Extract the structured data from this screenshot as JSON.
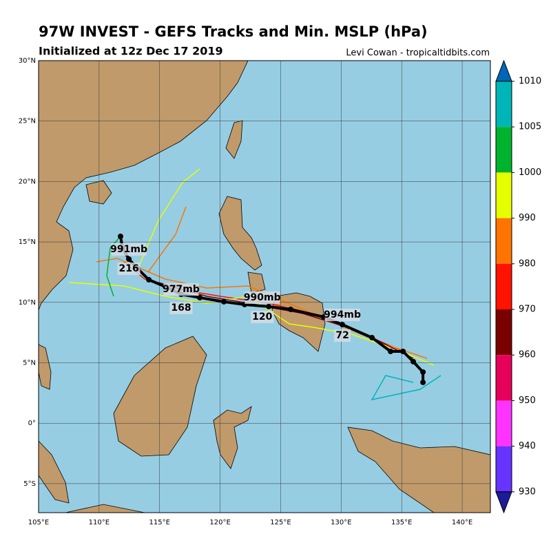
{
  "header": {
    "title": "97W INVEST - GEFS Tracks and Min. MSLP (hPa)",
    "subtitle": "Initialized at 12z Dec 17 2019",
    "credit": "Levi Cowan - tropicaltidbits.com"
  },
  "map": {
    "lonlim": [
      105,
      142.33
    ],
    "latlim": [
      -7.4,
      30
    ],
    "lon_ticks": [
      {
        "value": 105,
        "label": "105°E"
      },
      {
        "value": 110,
        "label": "110°E"
      },
      {
        "value": 115,
        "label": "115°E"
      },
      {
        "value": 120,
        "label": "120°E"
      },
      {
        "value": 125,
        "label": "125°E"
      },
      {
        "value": 130,
        "label": "130°E"
      },
      {
        "value": 135,
        "label": "135°E"
      },
      {
        "value": 140,
        "label": "140°E"
      }
    ],
    "lat_ticks": [
      {
        "value": 30,
        "label": "30°N"
      },
      {
        "value": 25,
        "label": "25°N"
      },
      {
        "value": 20,
        "label": "20°N"
      },
      {
        "value": 15,
        "label": "15°N"
      },
      {
        "value": 10,
        "label": "10°N"
      },
      {
        "value": 5,
        "label": "5°N"
      },
      {
        "value": 0,
        "label": "0°"
      },
      {
        "value": -5,
        "label": "5°S"
      }
    ]
  },
  "mean_track": {
    "lon": [
      136.76,
      136.76,
      135.96,
      135.11,
      134.08,
      132.55,
      130.1,
      128.56,
      125.83,
      124.01,
      122.02,
      120.31,
      118.32,
      116.78,
      115.47,
      114.11,
      113.2,
      112.46,
      111.94,
      111.77
    ],
    "lat": [
      3.38,
      4.23,
      5.09,
      5.94,
      5.94,
      7.08,
      8.16,
      8.79,
      9.42,
      9.65,
      9.82,
      10.05,
      10.39,
      10.67,
      11.3,
      11.87,
      12.78,
      13.58,
      14.49,
      15.46
    ],
    "labels": [
      {
        "text": "994mb",
        "lon": 130.1,
        "lat": 8.96
      },
      {
        "text": "72",
        "lon": 130.1,
        "lat": 7.25
      },
      {
        "text": "990mb",
        "lon": 123.48,
        "lat": 10.39
      },
      {
        "text": "120",
        "lon": 123.48,
        "lat": 8.79
      },
      {
        "text": "977mb",
        "lon": 116.78,
        "lat": 11.07
      },
      {
        "text": "168",
        "lon": 116.78,
        "lat": 9.53
      },
      {
        "text": "991mb",
        "lon": 112.46,
        "lat": 14.38
      },
      {
        "text": "216",
        "lon": 112.46,
        "lat": 12.78
      }
    ]
  },
  "colorbar": {
    "ticks": [
      1010,
      1005,
      1000,
      990,
      980,
      970,
      960,
      950,
      940,
      930
    ],
    "colors": [
      "#0066b8",
      "#00b5b8",
      "#00b32e",
      "#e6ff00",
      "#ff7400",
      "#ff1200",
      "#7a0000",
      "#e6005a",
      "#ff33ff",
      "#6633ff",
      "#1c1c99"
    ]
  }
}
